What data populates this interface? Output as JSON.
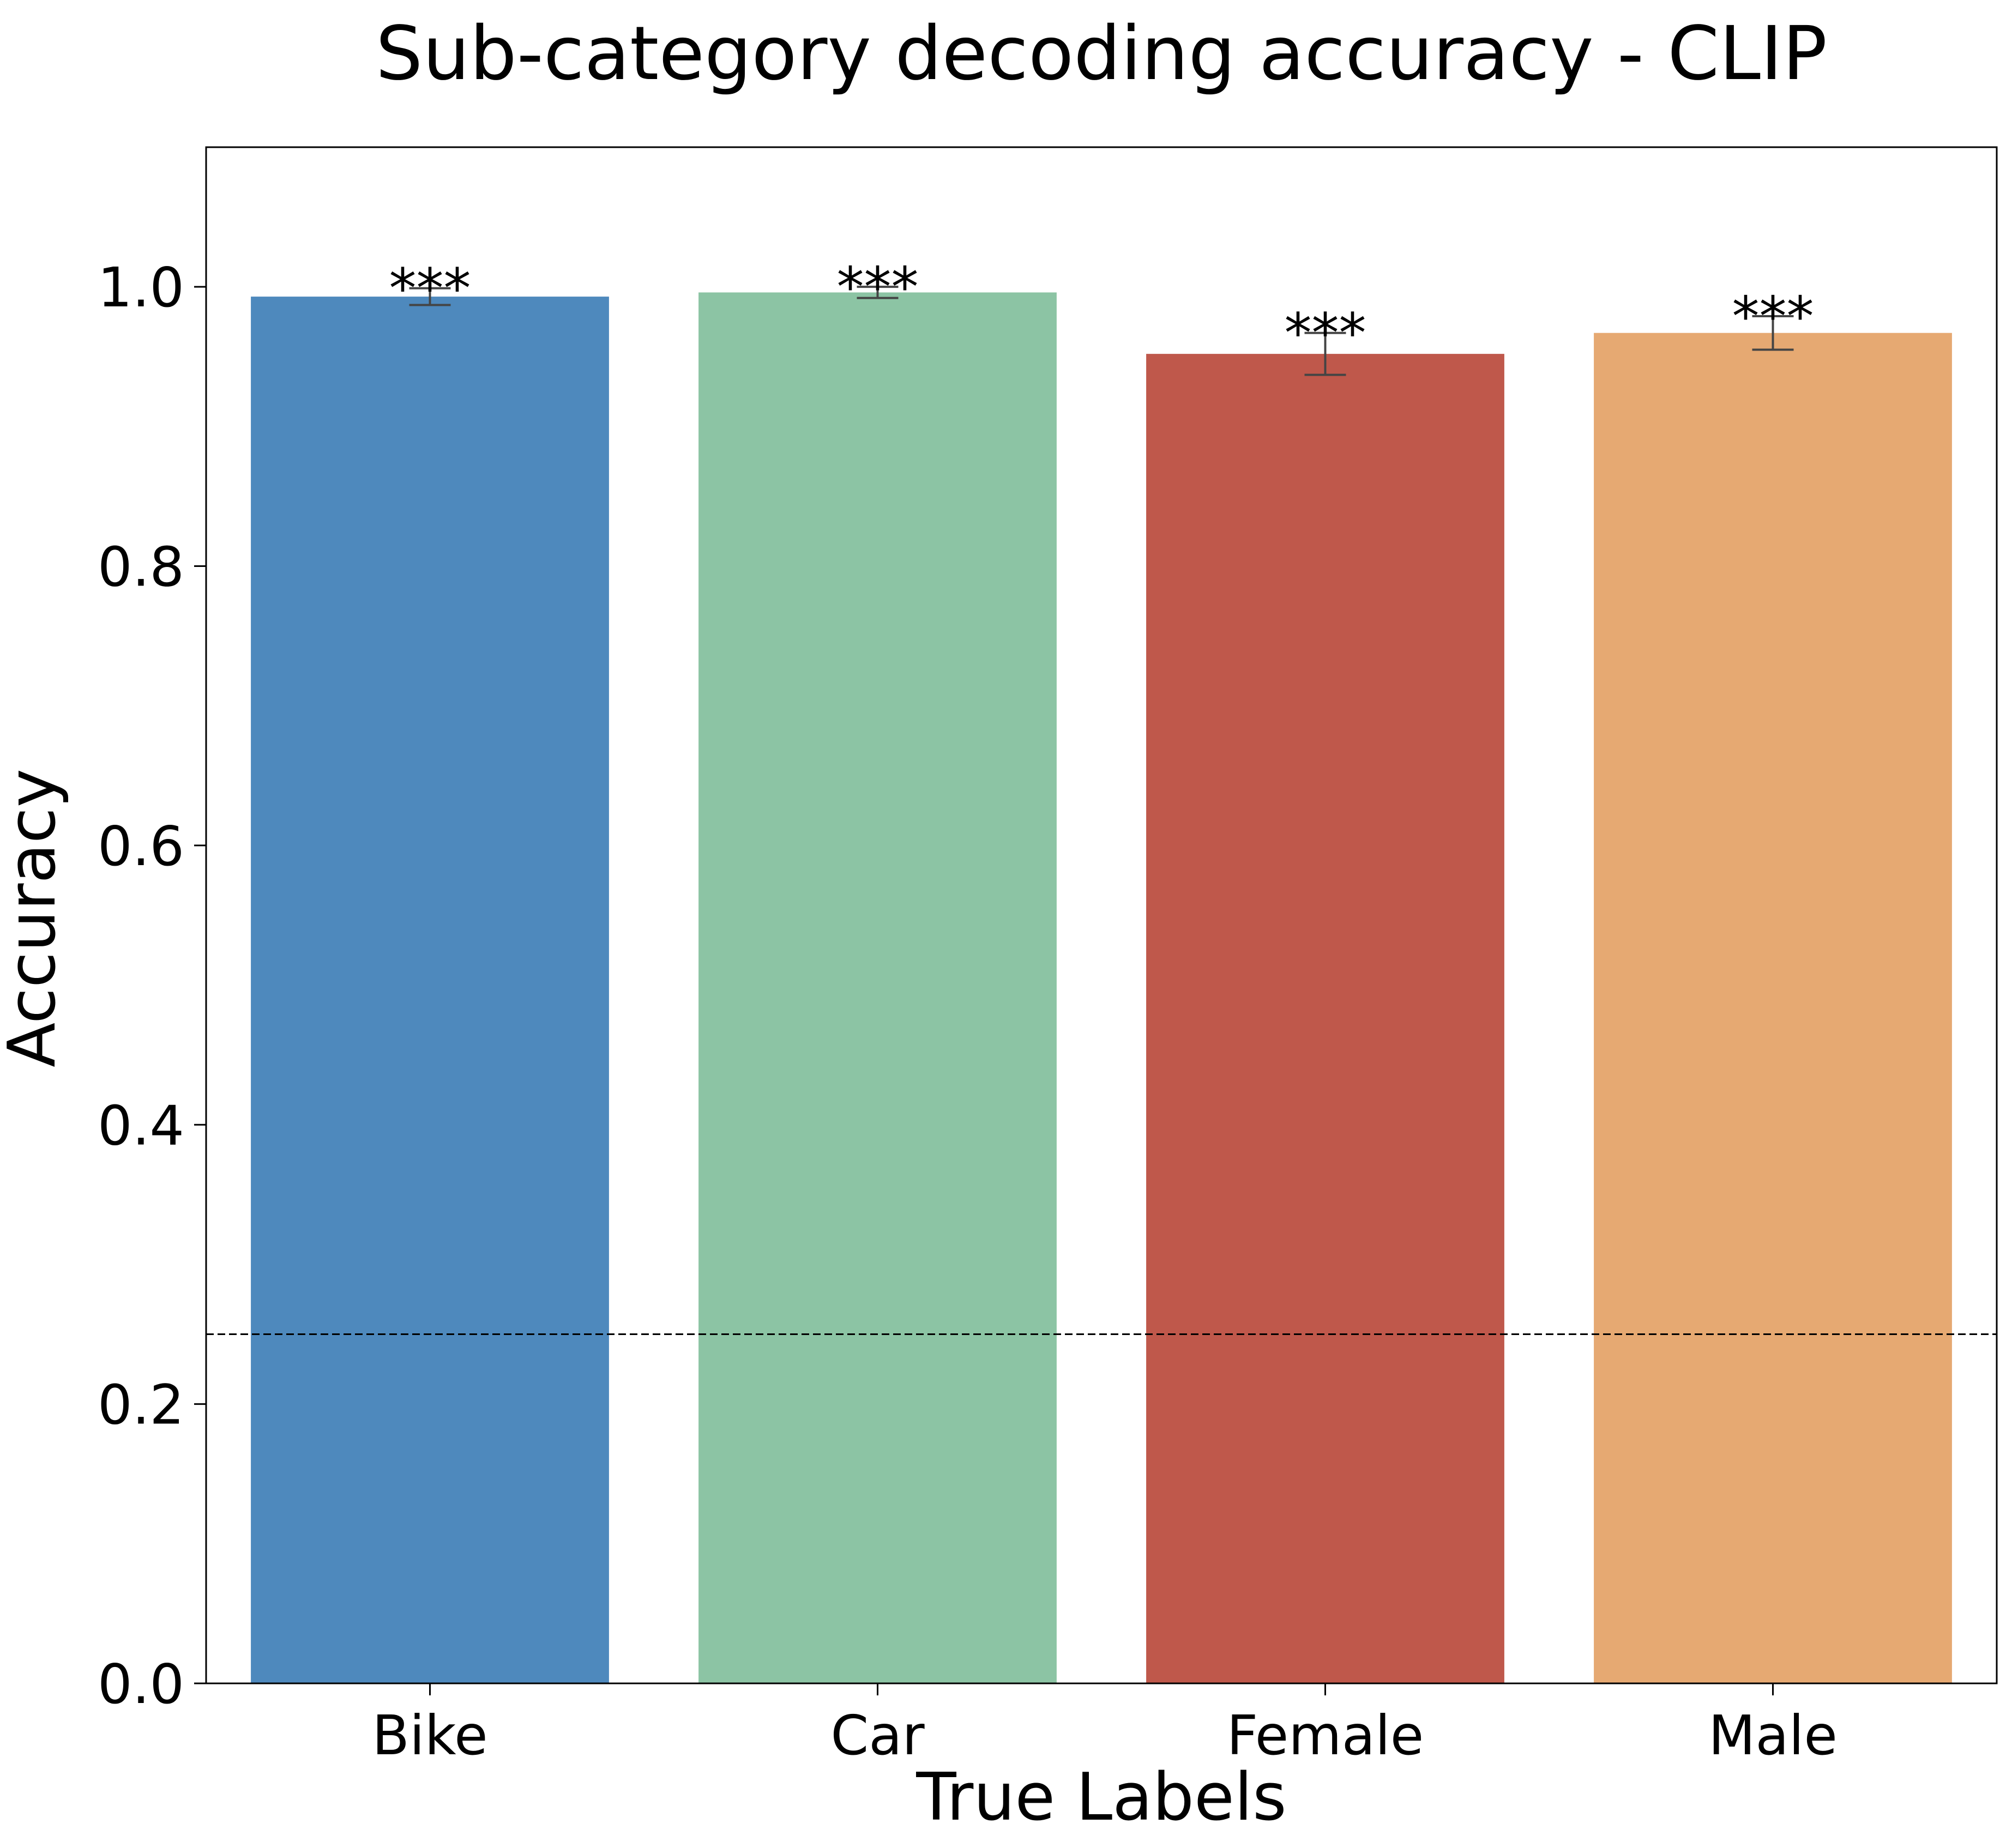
{
  "chart_data": {
    "type": "bar",
    "title": "Sub-category decoding accuracy - CLIP",
    "xlabel": "True Labels",
    "ylabel": "Accuracy",
    "categories": [
      "Bike",
      "Car",
      "Female",
      "Male"
    ],
    "values": [
      0.993,
      0.996,
      0.952,
      0.967
    ],
    "error": [
      0.006,
      0.004,
      0.015,
      0.012
    ],
    "annotations": [
      "***",
      "***",
      "***",
      "***"
    ],
    "colors": [
      "#4e89bd",
      "#8cc4a4",
      "#bf584b",
      "#e6a972"
    ],
    "ylim": [
      0,
      1.1
    ],
    "yticks": [
      0.0,
      0.2,
      0.4,
      0.6,
      0.8,
      1.0
    ],
    "ytick_labels": [
      "0.0",
      "0.2",
      "0.4",
      "0.6",
      "0.8",
      "1.0"
    ],
    "chance_level": 0.25,
    "grid": false,
    "legend": "none"
  }
}
